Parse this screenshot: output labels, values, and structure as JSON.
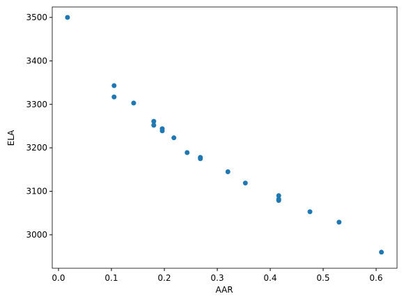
{
  "chart_data": {
    "type": "scatter",
    "xlabel": "AAR",
    "ylabel": "ELA",
    "color": "#1f77b4",
    "x": [
      0.017,
      0.105,
      0.105,
      0.142,
      0.18,
      0.18,
      0.196,
      0.196,
      0.218,
      0.243,
      0.268,
      0.268,
      0.32,
      0.353,
      0.416,
      0.416,
      0.416,
      0.475,
      0.53,
      0.61
    ],
    "values": [
      3500,
      3343,
      3317,
      3303,
      3261,
      3252,
      3244,
      3239,
      3223,
      3189,
      3178,
      3175,
      3145,
      3119,
      3090,
      3082,
      3079,
      3053,
      3029,
      2960
    ],
    "xlim": [
      -0.0118,
      0.6395
    ],
    "ylim": [
      2923,
      3524
    ],
    "xticks": [
      {
        "value": 0,
        "label": "0.0"
      },
      0.1,
      0.2,
      0.3,
      0.4,
      0.5,
      0.6
    ],
    "yticks": [
      3000,
      3100,
      3200,
      3300,
      3400,
      3500
    ]
  }
}
